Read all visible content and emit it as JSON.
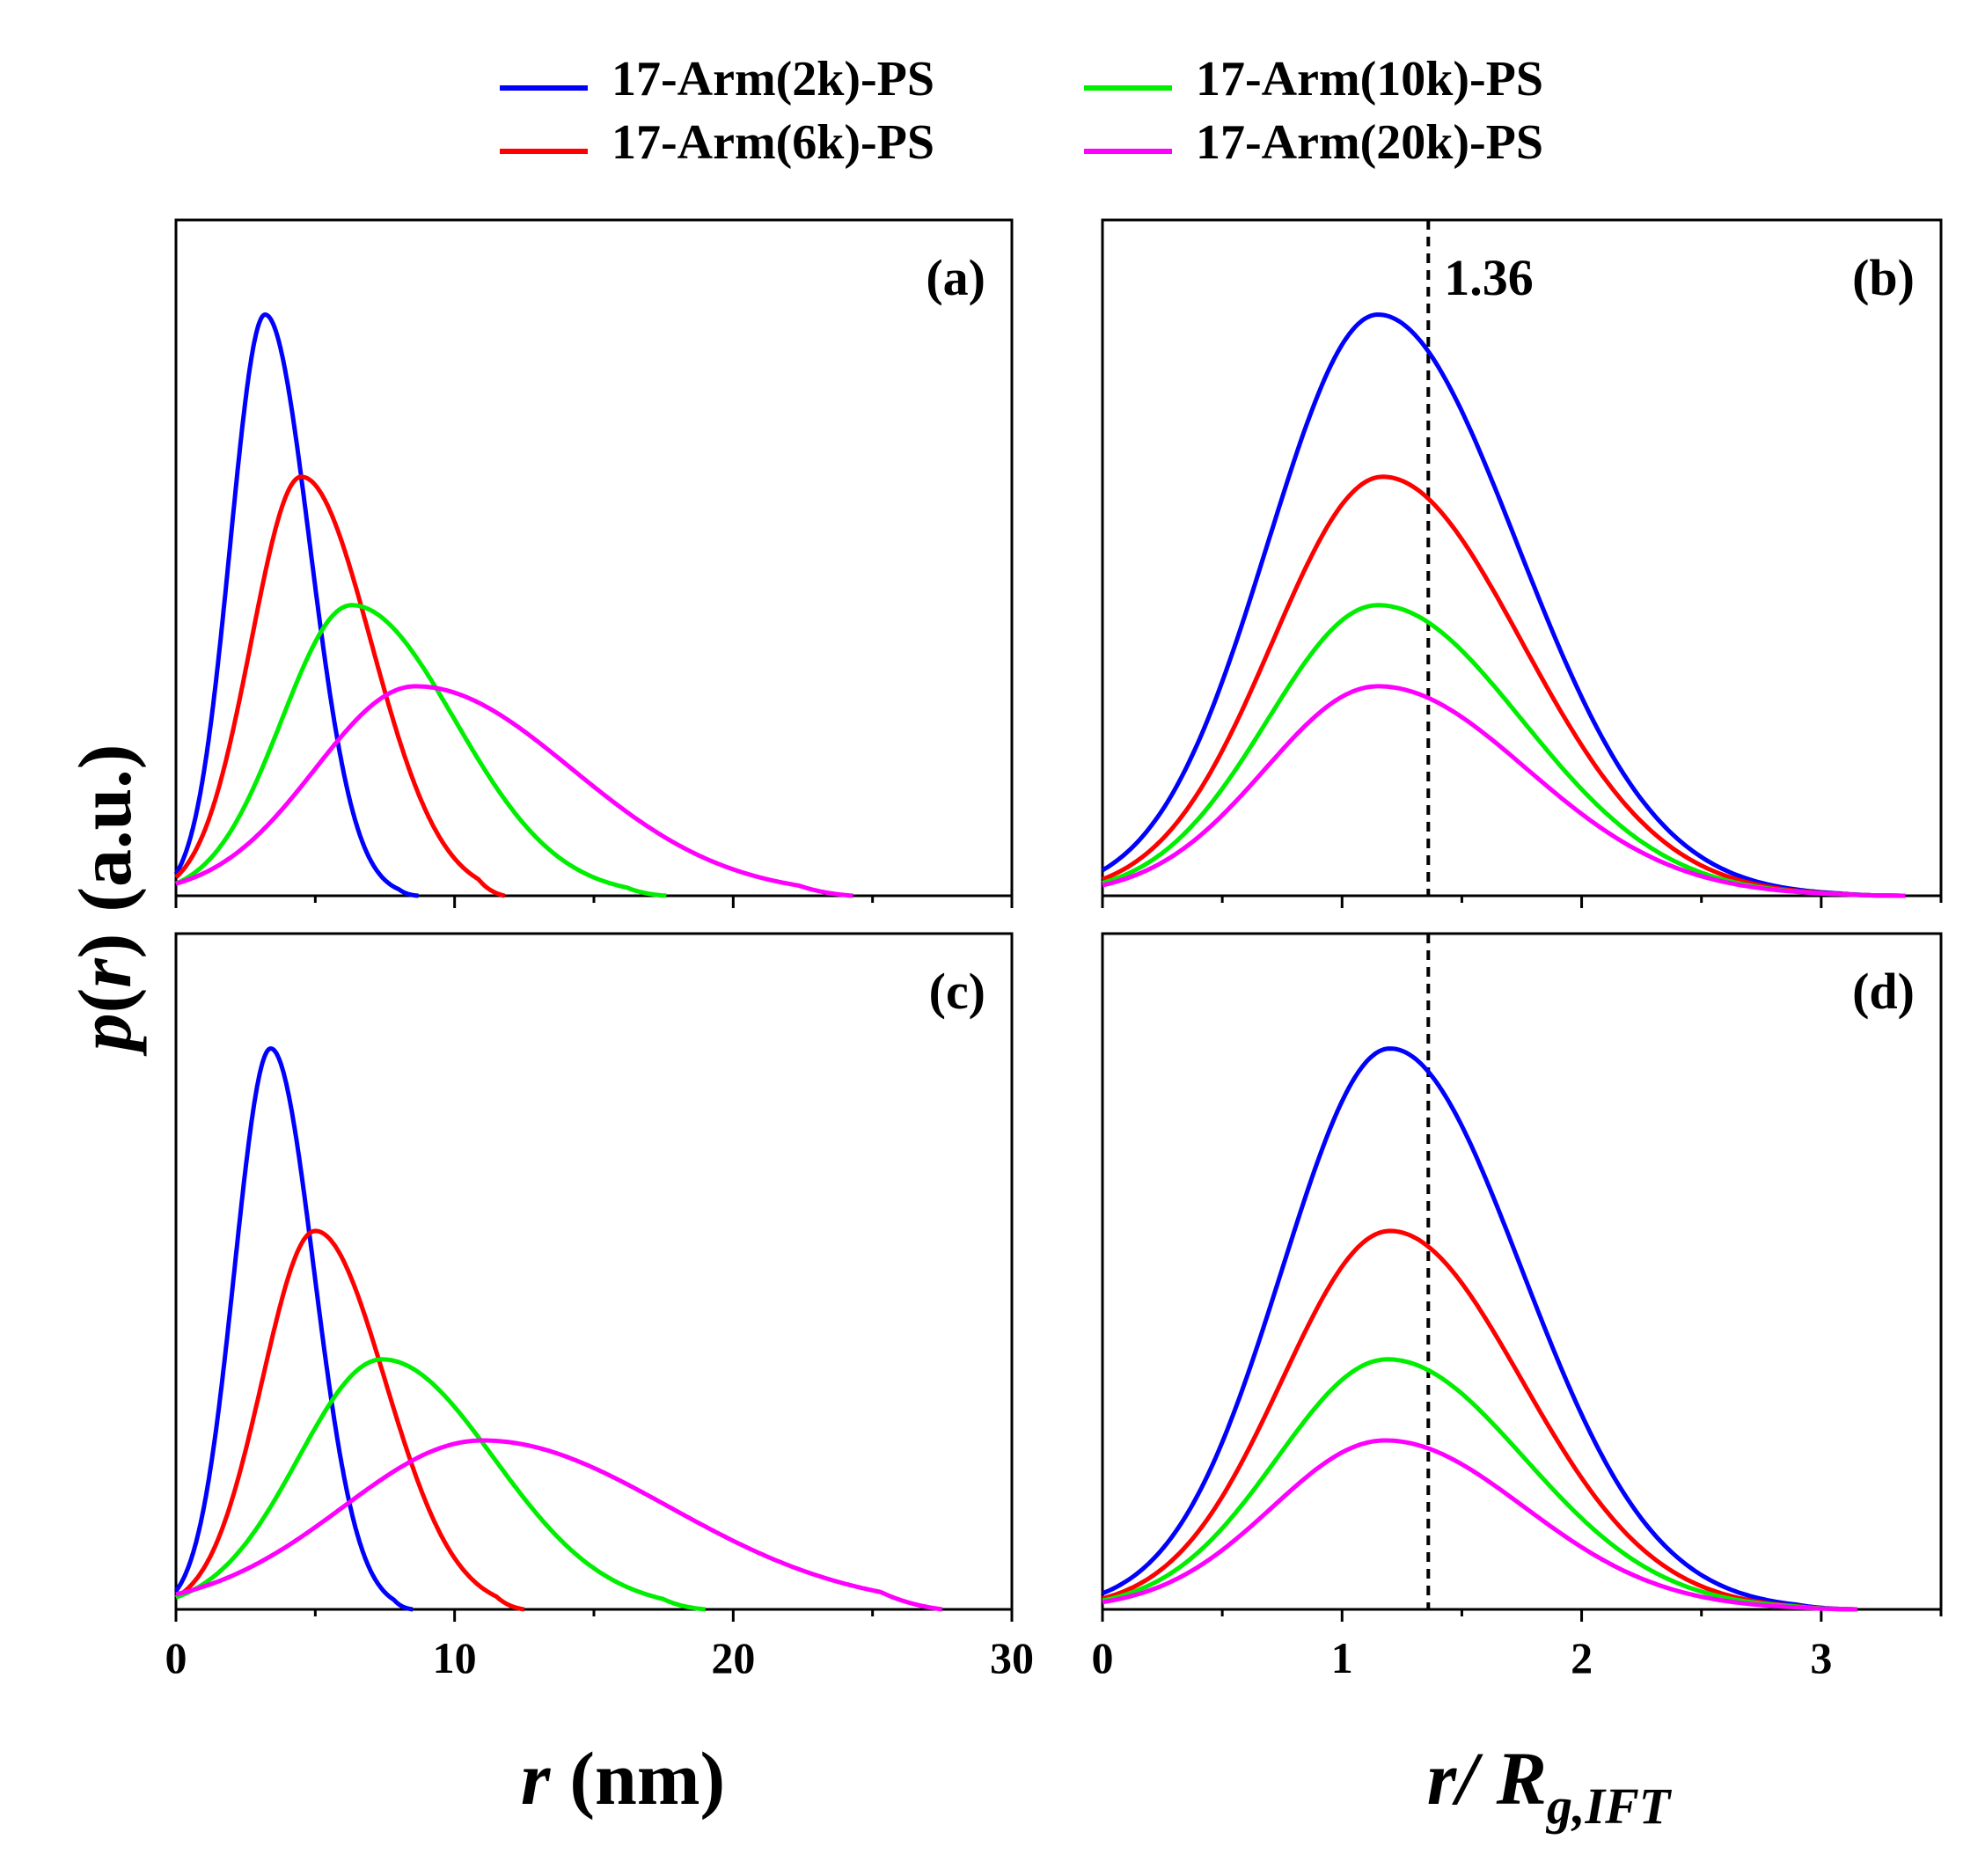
{
  "chart_data": {
    "type": "line",
    "legend": [
      {
        "label": "17-Arm(2k)-PS",
        "color": "#0000ff"
      },
      {
        "label": "17-Arm(6k)-PS",
        "color": "#ff0000"
      },
      {
        "label": "17-Arm(10k)-PS",
        "color": "#00ee00"
      },
      {
        "label": "17-Arm(20k)-PS",
        "color": "#ff00ff"
      }
    ],
    "ylabel": {
      "p": "p",
      "open": "(",
      "r": "r",
      "close": ")",
      "units": "(a.u.)"
    },
    "xlabel_left": {
      "r": "r",
      "units": "(nm)"
    },
    "xlabel_right": {
      "r": "r",
      "slash": "/ ",
      "R": "R",
      "sub": "g,IFT"
    },
    "x_ticks_left": [
      "0",
      "10",
      "20",
      "30"
    ],
    "x_ticks_right": [
      "0",
      "1",
      "2",
      "3"
    ],
    "panels": [
      {
        "label": "(a)",
        "xlim": [
          0,
          30
        ],
        "ylim": [
          0,
          1.0
        ],
        "series": [
          {
            "name": "17-Arm(2k)-PS",
            "peak_x": 3.2,
            "peak_y": 0.86,
            "sigma_left": 1.25,
            "sigma_right": 1.6,
            "end_x": 8.7
          },
          {
            "name": "17-Arm(6k)-PS",
            "peak_x": 4.5,
            "peak_y": 0.62,
            "sigma_left": 1.8,
            "sigma_right": 2.5,
            "end_x": 11.8
          },
          {
            "name": "17-Arm(10k)-PS",
            "peak_x": 6.3,
            "peak_y": 0.43,
            "sigma_left": 2.5,
            "sigma_right": 3.7,
            "end_x": 17.6
          },
          {
            "name": "17-Arm(20k)-PS",
            "peak_x": 8.6,
            "peak_y": 0.31,
            "sigma_left": 3.6,
            "sigma_right": 5.6,
            "end_x": 24.3
          }
        ]
      },
      {
        "label": "(b)",
        "xlim": [
          0,
          3.5
        ],
        "ylim": [
          0,
          1.0
        ],
        "vline_x": 1.36,
        "vline_label": "1.36",
        "series": [
          {
            "name": "17-Arm(2k)-PS",
            "peak_x": 1.15,
            "peak_y": 0.86,
            "sigma_left": 0.46,
            "sigma_right": 0.58,
            "end_x": 3.35
          },
          {
            "name": "17-Arm(6k)-PS",
            "peak_x": 1.17,
            "peak_y": 0.62,
            "sigma_left": 0.46,
            "sigma_right": 0.58,
            "end_x": 3.35
          },
          {
            "name": "17-Arm(10k)-PS",
            "peak_x": 1.15,
            "peak_y": 0.43,
            "sigma_left": 0.46,
            "sigma_right": 0.6,
            "end_x": 3.35
          },
          {
            "name": "17-Arm(20k)-PS",
            "peak_x": 1.15,
            "peak_y": 0.31,
            "sigma_left": 0.47,
            "sigma_right": 0.62,
            "end_x": 3.35
          }
        ]
      },
      {
        "label": "(c)",
        "xlim": [
          0,
          30
        ],
        "ylim": [
          0,
          1.0
        ],
        "series": [
          {
            "name": "17-Arm(2k)-PS",
            "peak_x": 3.4,
            "peak_y": 0.83,
            "sigma_left": 1.3,
            "sigma_right": 1.55,
            "end_x": 8.5
          },
          {
            "name": "17-Arm(6k)-PS",
            "peak_x": 5.0,
            "peak_y": 0.56,
            "sigma_left": 1.9,
            "sigma_right": 2.5,
            "end_x": 12.5
          },
          {
            "name": "17-Arm(10k)-PS",
            "peak_x": 7.4,
            "peak_y": 0.37,
            "sigma_left": 3.0,
            "sigma_right": 4.0,
            "end_x": 19.0
          },
          {
            "name": "17-Arm(20k)-PS",
            "peak_x": 11.0,
            "peak_y": 0.25,
            "sigma_left": 5.0,
            "sigma_right": 6.7,
            "end_x": 27.5
          }
        ]
      },
      {
        "label": "(d)",
        "xlim": [
          0,
          3.5
        ],
        "ylim": [
          0,
          1.0
        ],
        "vline_x": 1.36,
        "series": [
          {
            "name": "17-Arm(2k)-PS",
            "peak_x": 1.2,
            "peak_y": 0.83,
            "sigma_left": 0.45,
            "sigma_right": 0.55,
            "end_x": 3.15
          },
          {
            "name": "17-Arm(6k)-PS",
            "peak_x": 1.2,
            "peak_y": 0.56,
            "sigma_left": 0.45,
            "sigma_right": 0.55,
            "end_x": 3.15
          },
          {
            "name": "17-Arm(10k)-PS",
            "peak_x": 1.19,
            "peak_y": 0.37,
            "sigma_left": 0.46,
            "sigma_right": 0.57,
            "end_x": 3.15
          },
          {
            "name": "17-Arm(20k)-PS",
            "peak_x": 1.18,
            "peak_y": 0.25,
            "sigma_left": 0.47,
            "sigma_right": 0.58,
            "end_x": 3.15
          }
        ]
      }
    ]
  }
}
